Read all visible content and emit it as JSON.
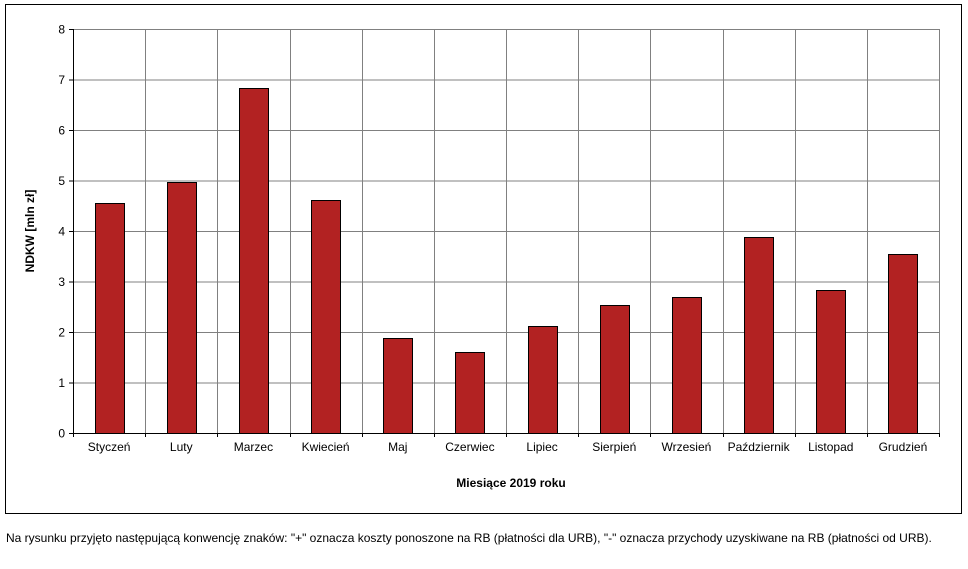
{
  "chart_data": {
    "type": "bar",
    "title": "",
    "xlabel": "Miesiące 2019  roku",
    "ylabel": "NDKW [mln zł]",
    "ylim": [
      0,
      8
    ],
    "yticks": [
      0,
      1,
      2,
      3,
      4,
      5,
      6,
      7,
      8
    ],
    "grid": true,
    "categories": [
      "Styczeń",
      "Luty",
      "Marzec",
      "Kwiecień",
      "Maj",
      "Czerwiec",
      "Lipiec",
      "Sierpień",
      "Wrzesień",
      "Październik",
      "Listopad",
      "Grudzień"
    ],
    "values": [
      4.55,
      4.98,
      6.83,
      4.61,
      1.88,
      1.61,
      2.12,
      2.53,
      2.69,
      3.88,
      2.83,
      3.55
    ],
    "bar_color": "#B22222"
  },
  "caption": "Na rysunku przyjęto następującą konwencję znaków: \"+\" oznacza koszty ponoszone na RB (płatności dla URB), \"-\" oznacza przychody uzyskiwane na RB (płatności od URB)."
}
